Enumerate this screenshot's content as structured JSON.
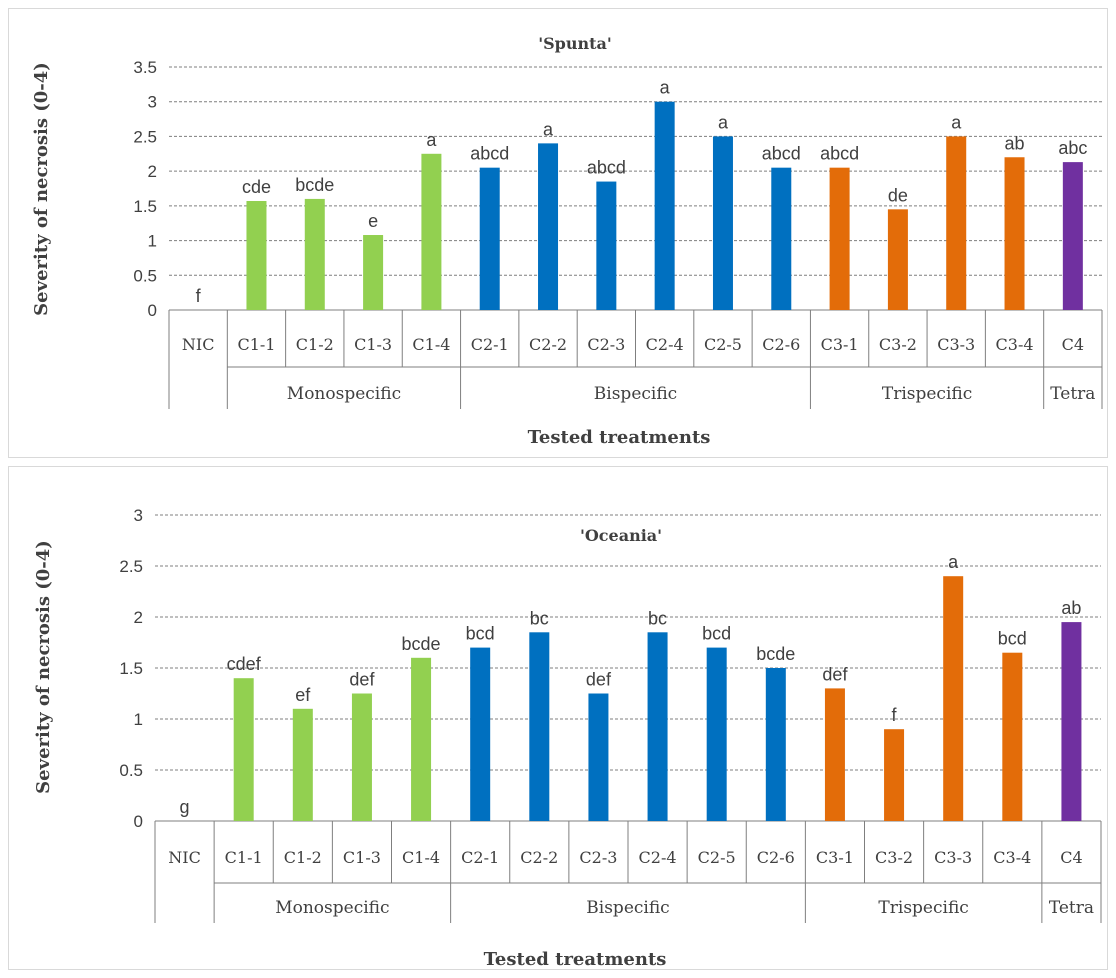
{
  "chart_data": [
    {
      "type": "bar",
      "title": "'Spunta'",
      "xlabel": "Tested treatments",
      "ylabel": "Severity of necrosis (0-4)",
      "ylim": [
        0,
        3.5
      ],
      "yticks": [
        "0",
        "0.5",
        "1",
        "1.5",
        "2",
        "2.5",
        "3",
        "3.5"
      ],
      "grid": true,
      "categories": [
        "NIC",
        "C1-1",
        "C1-2",
        "C1-3",
        "C1-4",
        "C2-1",
        "C2-2",
        "C2-3",
        "C2-4",
        "C2-5",
        "C2-6",
        "C3-1",
        "C3-2",
        "C3-3",
        "C3-4",
        "C4"
      ],
      "values": [
        0,
        1.57,
        1.6,
        1.08,
        2.25,
        2.05,
        2.4,
        1.85,
        3.0,
        2.5,
        2.05,
        2.05,
        1.45,
        2.5,
        2.2,
        2.13
      ],
      "letters": [
        "f",
        "cde",
        "bcde",
        "e",
        "a",
        "abcd",
        "a",
        "abcd",
        "a",
        "a",
        "abcd",
        "abcd",
        "de",
        "a",
        "ab",
        "abc"
      ],
      "groups": [
        {
          "name": "",
          "start": 0,
          "end": 0
        },
        {
          "name": "Monospecific",
          "start": 1,
          "end": 4,
          "color": "#92d050"
        },
        {
          "name": "Bispecific",
          "start": 5,
          "end": 10,
          "color": "#0070c0"
        },
        {
          "name": "Trispecific",
          "start": 11,
          "end": 14,
          "color": "#e36c09"
        },
        {
          "name": "Tetra",
          "start": 15,
          "end": 15,
          "color": "#7030a0"
        }
      ]
    },
    {
      "type": "bar",
      "title": "'Oceania'",
      "xlabel": "Tested treatments",
      "ylabel": "Severity of necrosis (0-4)",
      "ylim": [
        0,
        3
      ],
      "yticks": [
        "0",
        "0.5",
        "1",
        "1.5",
        "2",
        "2.5",
        "3"
      ],
      "grid": true,
      "categories": [
        "NIC",
        "C1-1",
        "C1-2",
        "C1-3",
        "C1-4",
        "C2-1",
        "C2-2",
        "C2-3",
        "C2-4",
        "C2-5",
        "C2-6",
        "C3-1",
        "C3-2",
        "C3-3",
        "C3-4",
        "C4"
      ],
      "values": [
        0,
        1.4,
        1.1,
        1.25,
        1.6,
        1.7,
        1.85,
        1.25,
        1.85,
        1.7,
        1.5,
        1.3,
        0.9,
        2.4,
        1.65,
        1.95
      ],
      "letters": [
        "g",
        "cdef",
        "ef",
        "def",
        "bcde",
        "bcd",
        "bc",
        "def",
        "bc",
        "bcd",
        "bcde",
        "def",
        "f",
        "a",
        "bcd",
        "ab"
      ],
      "groups": [
        {
          "name": "",
          "start": 0,
          "end": 0
        },
        {
          "name": "Monospecific",
          "start": 1,
          "end": 4,
          "color": "#92d050"
        },
        {
          "name": "Bispecific",
          "start": 5,
          "end": 10,
          "color": "#0070c0"
        },
        {
          "name": "Trispecific",
          "start": 11,
          "end": 14,
          "color": "#e36c09"
        },
        {
          "name": "Tetra",
          "start": 15,
          "end": 15,
          "color": "#7030a0"
        }
      ]
    }
  ]
}
